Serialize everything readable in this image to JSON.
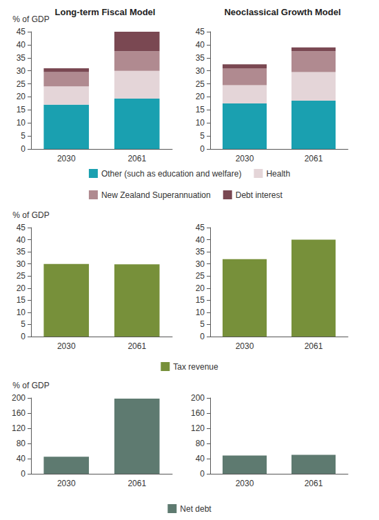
{
  "chart_data": [
    {
      "type": "bar",
      "title": "Long-term Fiscal Model",
      "ylabel": "% of GDP",
      "categories": [
        "2030",
        "2061"
      ],
      "series": [
        {
          "name": "Other (such as education and welfare)",
          "color": "#1aa0b0",
          "values": [
            17,
            19.3
          ]
        },
        {
          "name": "Health",
          "color": "#e4d5d8",
          "values": [
            7,
            10.7
          ]
        },
        {
          "name": "New Zealand Superannuation",
          "color": "#b08a90",
          "values": [
            5.5,
            7.5
          ]
        },
        {
          "name": "Debt interest",
          "color": "#7a4852",
          "values": [
            1.5,
            7.5
          ]
        }
      ],
      "ylim": [
        0,
        45
      ],
      "yticks": [
        0,
        5,
        10,
        15,
        20,
        25,
        30,
        35,
        40,
        45
      ],
      "stacked": true,
      "grid": false,
      "legend": "bottom"
    },
    {
      "type": "bar",
      "title": "Neoclassical Growth Model",
      "categories": [
        "2030",
        "2061"
      ],
      "series": [
        {
          "name": "Other (such as education and welfare)",
          "color": "#1aa0b0",
          "values": [
            17.5,
            18.5
          ]
        },
        {
          "name": "Health",
          "color": "#e4d5d8",
          "values": [
            7,
            11
          ]
        },
        {
          "name": "New Zealand Superannuation",
          "color": "#b08a90",
          "values": [
            6.5,
            8
          ]
        },
        {
          "name": "Debt interest",
          "color": "#7a4852",
          "values": [
            1.5,
            1.5
          ]
        }
      ],
      "ylim": [
        0,
        45
      ],
      "yticks": [
        0,
        5,
        10,
        15,
        20,
        25,
        30,
        35,
        40,
        45
      ],
      "stacked": true,
      "grid": false,
      "legend": "bottom"
    },
    {
      "type": "bar",
      "ylabel": "% of GDP",
      "categories": [
        "2030",
        "2061"
      ],
      "series": [
        {
          "name": "Tax revenue",
          "color": "#77903a",
          "values": [
            30,
            29.8
          ]
        }
      ],
      "ylim": [
        0,
        45
      ],
      "yticks": [
        0,
        5,
        10,
        15,
        20,
        25,
        30,
        35,
        40,
        45
      ],
      "grid": false,
      "legend": "bottom"
    },
    {
      "type": "bar",
      "categories": [
        "2030",
        "2061"
      ],
      "series": [
        {
          "name": "Tax revenue",
          "color": "#77903a",
          "values": [
            32,
            40
          ]
        }
      ],
      "ylim": [
        0,
        45
      ],
      "yticks": [
        0,
        5,
        10,
        15,
        20,
        25,
        30,
        35,
        40,
        45
      ],
      "grid": false,
      "legend": "bottom"
    },
    {
      "type": "bar",
      "ylabel": "% of GDP",
      "categories": [
        "2030",
        "2061"
      ],
      "series": [
        {
          "name": "Net debt",
          "color": "#5e7a70",
          "values": [
            45,
            198
          ]
        }
      ],
      "ylim": [
        0,
        200
      ],
      "yticks": [
        0,
        40,
        80,
        120,
        160,
        200
      ],
      "grid": false,
      "legend": "bottom"
    },
    {
      "type": "bar",
      "categories": [
        "2030",
        "2061"
      ],
      "series": [
        {
          "name": "Net debt",
          "color": "#5e7a70",
          "values": [
            48,
            50
          ]
        }
      ],
      "ylim": [
        0,
        200
      ],
      "yticks": [
        0,
        40,
        80,
        120,
        160,
        200
      ],
      "grid": false,
      "legend": "bottom"
    }
  ]
}
